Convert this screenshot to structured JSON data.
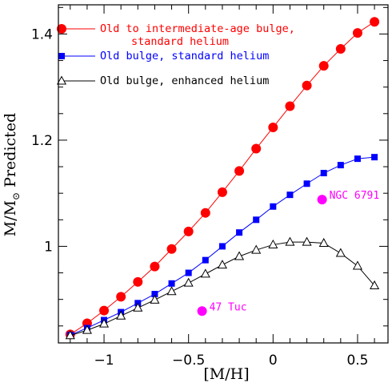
{
  "chart_data": {
    "type": "line",
    "xlabel": "[M/H]",
    "ylabel": "M/M",
    "ylabel_suffix": "Predicted",
    "ylabel_subscript": "⊙",
    "xlim": [
      -1.27,
      0.68
    ],
    "ylim": [
      0.818,
      1.455
    ],
    "xticks_major": [
      -1,
      -0.5,
      0,
      0.5
    ],
    "xtick_labels": [
      "−1",
      "−0.5",
      "0",
      "0.5"
    ],
    "yticks_major": [
      1,
      1.2,
      1.4
    ],
    "ytick_labels": [
      "1",
      "1.2",
      "1.4"
    ],
    "legend_position": "top-left",
    "series": [
      {
        "name_lines": [
          "Old to intermediate-age bulge,",
          "standard helium"
        ],
        "color": "#ff0000",
        "marker": "circle-filled",
        "x": [
          -1.2,
          -1.1,
          -1.0,
          -0.9,
          -0.8,
          -0.7,
          -0.6,
          -0.5,
          -0.4,
          -0.3,
          -0.2,
          -0.1,
          0.0,
          0.1,
          0.2,
          0.3,
          0.4,
          0.5,
          0.6
        ],
        "y": [
          0.834,
          0.855,
          0.879,
          0.905,
          0.933,
          0.962,
          0.995,
          1.028,
          1.063,
          1.102,
          1.142,
          1.184,
          1.224,
          1.264,
          1.303,
          1.34,
          1.372,
          1.402,
          1.423
        ]
      },
      {
        "name_lines": [
          "Old bulge, standard helium"
        ],
        "color": "#0000ff",
        "marker": "square-filled",
        "x": [
          -1.2,
          -1.1,
          -1.0,
          -0.9,
          -0.8,
          -0.7,
          -0.6,
          -0.5,
          -0.4,
          -0.3,
          -0.2,
          -0.1,
          0.0,
          0.1,
          0.2,
          0.3,
          0.4,
          0.5,
          0.6
        ],
        "y": [
          0.833,
          0.846,
          0.861,
          0.876,
          0.893,
          0.91,
          0.93,
          0.95,
          0.974,
          1.0,
          1.026,
          1.05,
          1.075,
          1.097,
          1.118,
          1.138,
          1.153,
          1.165,
          1.168
        ]
      },
      {
        "name_lines": [
          "Old bulge, enhanced helium"
        ],
        "color": "#000000",
        "marker": "triangle-open",
        "x": [
          -1.2,
          -1.1,
          -1.0,
          -0.9,
          -0.8,
          -0.7,
          -0.6,
          -0.5,
          -0.4,
          -0.3,
          -0.2,
          -0.1,
          0.0,
          0.1,
          0.2,
          0.3,
          0.4,
          0.5,
          0.6
        ],
        "y": [
          0.832,
          0.842,
          0.854,
          0.869,
          0.884,
          0.899,
          0.915,
          0.931,
          0.948,
          0.965,
          0.981,
          0.993,
          1.003,
          1.008,
          1.008,
          1.006,
          0.987,
          0.963,
          0.926
        ]
      }
    ],
    "clusters": [
      {
        "label": "NGC 6791",
        "x": 0.29,
        "y": 1.088,
        "color": "#ff00ff"
      },
      {
        "label": "47 Tuc",
        "x": -0.42,
        "y": 0.878,
        "color": "#ff00ff"
      }
    ]
  }
}
